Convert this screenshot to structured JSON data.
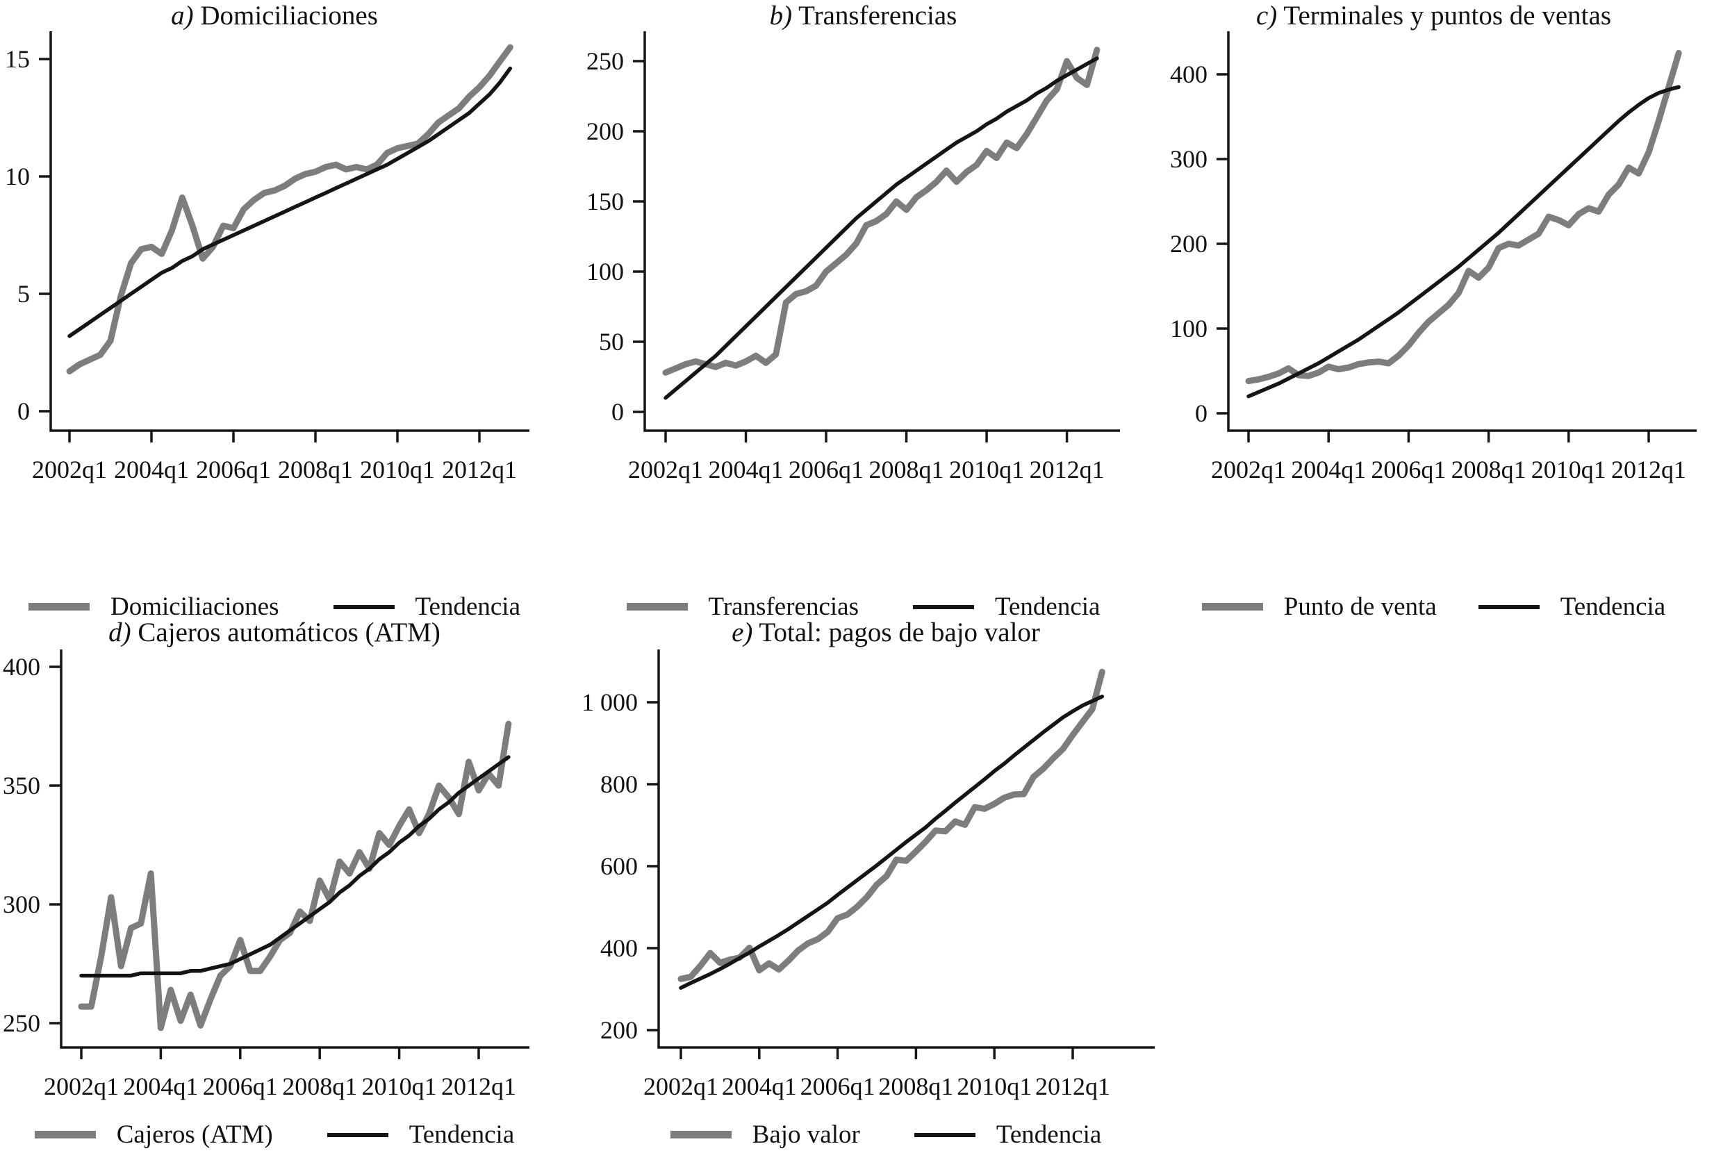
{
  "figure": {
    "background": "#ffffff",
    "series_color_gray": "#7d7d7d",
    "series_color_black": "#151515"
  },
  "chart_data": [
    {
      "id": "a",
      "type": "line",
      "title": "a) Domiciliaciones",
      "xlabel": "",
      "ylabel": "",
      "x_start": "2002q1",
      "x_end": "2012q4",
      "frequency": "quarterly",
      "grid": false,
      "legend_position": "bottom",
      "ylim": [
        0,
        16.5
      ],
      "y_tick_values": [
        0,
        5,
        10,
        15
      ],
      "y_tick_labels": [
        "0",
        "5",
        "10",
        "15"
      ],
      "x_tick_labels": [
        "2002q1",
        "2004q1",
        "2006q1",
        "2008q1",
        "2010q1",
        "2012q1"
      ],
      "series": [
        {
          "name": "Domiciliaciones",
          "color": "#7d7d7d",
          "values": [
            1.7,
            2.0,
            2.2,
            2.4,
            3.0,
            4.9,
            6.3,
            6.9,
            7.0,
            6.7,
            7.7,
            9.1,
            7.9,
            6.5,
            7.0,
            7.9,
            7.8,
            8.6,
            9.0,
            9.3,
            9.4,
            9.6,
            9.9,
            10.1,
            10.2,
            10.4,
            10.5,
            10.3,
            10.4,
            10.3,
            10.5,
            11.0,
            11.2,
            11.3,
            11.4,
            11.8,
            12.3,
            12.6,
            12.9,
            13.4,
            13.8,
            14.3,
            14.9,
            15.5
          ]
        },
        {
          "name": "Tendencia",
          "color": "#151515",
          "values": [
            3.2,
            3.5,
            3.8,
            4.1,
            4.4,
            4.7,
            5.0,
            5.3,
            5.6,
            5.9,
            6.1,
            6.4,
            6.6,
            6.9,
            7.1,
            7.3,
            7.5,
            7.7,
            7.9,
            8.1,
            8.3,
            8.5,
            8.7,
            8.9,
            9.1,
            9.3,
            9.5,
            9.7,
            9.9,
            10.1,
            10.3,
            10.5,
            10.75,
            11.0,
            11.25,
            11.5,
            11.8,
            12.1,
            12.4,
            12.7,
            13.1,
            13.5,
            14.0,
            14.6
          ]
        }
      ],
      "legend": [
        {
          "label": "Domiciliaciones",
          "style": "thick-gray"
        },
        {
          "label": "Tendencia",
          "style": "thin-black"
        }
      ]
    },
    {
      "id": "b",
      "type": "line",
      "title": "b) Transferencias",
      "xlabel": "",
      "ylabel": "",
      "x_start": "2002q1",
      "x_end": "2012q4",
      "frequency": "quarterly",
      "grid": false,
      "legend_position": "bottom",
      "ylim": [
        0,
        271
      ],
      "y_tick_values": [
        0,
        50,
        100,
        150,
        200,
        250
      ],
      "y_tick_labels": [
        "0",
        "50",
        "100",
        "150",
        "200",
        "250"
      ],
      "x_tick_labels": [
        "2002q1",
        "2004q1",
        "2006q1",
        "2008q1",
        "2010q1",
        "2012q1"
      ],
      "series": [
        {
          "name": "Transferencias",
          "color": "#7d7d7d",
          "values": [
            28,
            31,
            34,
            36,
            34,
            32,
            35,
            33,
            36,
            40,
            35,
            41,
            78,
            84,
            86,
            90,
            100,
            106,
            112,
            120,
            133,
            136,
            141,
            150,
            144,
            153,
            158,
            164,
            172,
            164,
            171,
            176,
            186,
            181,
            192,
            188,
            198,
            210,
            222,
            230,
            250,
            238,
            233,
            258
          ]
        },
        {
          "name": "Tendencia",
          "color": "#151515",
          "values": [
            10,
            16,
            22,
            28,
            34,
            40,
            47,
            54,
            61,
            68,
            75,
            82,
            89,
            96,
            103,
            110,
            117,
            124,
            131,
            138,
            144,
            150,
            156,
            162,
            167,
            172,
            177,
            182,
            187,
            192,
            196,
            200,
            205,
            209,
            214,
            218,
            222,
            227,
            231,
            236,
            240,
            244,
            248,
            252
          ]
        }
      ],
      "legend": [
        {
          "label": "Transferencias",
          "style": "thick-gray"
        },
        {
          "label": "Tendencia",
          "style": "thin-black"
        }
      ]
    },
    {
      "id": "c",
      "type": "line",
      "title": "c) Terminales y puntos de ventas",
      "xlabel": "",
      "ylabel": "",
      "x_start": "2002q1",
      "x_end": "2012q4",
      "frequency": "quarterly",
      "grid": false,
      "legend_position": "bottom",
      "ylim": [
        0,
        437
      ],
      "y_tick_values": [
        0,
        100,
        200,
        300,
        400
      ],
      "y_tick_labels": [
        "0",
        "100",
        "200",
        "300",
        "400"
      ],
      "x_tick_labels": [
        "2002q1",
        "2004q1",
        "2006q1",
        "2008q1",
        "2010q1",
        "2012q1"
      ],
      "series": [
        {
          "name": "Punto de venta",
          "color": "#7d7d7d",
          "values": [
            38,
            40,
            43,
            47,
            53,
            45,
            44,
            48,
            55,
            52,
            54,
            58,
            60,
            61,
            59,
            68,
            80,
            95,
            108,
            118,
            128,
            142,
            168,
            160,
            172,
            195,
            200,
            198,
            205,
            212,
            232,
            228,
            222,
            235,
            242,
            238,
            258,
            270,
            290,
            283,
            308,
            345,
            385,
            425
          ]
        },
        {
          "name": "Tendencia",
          "color": "#151515",
          "values": [
            20,
            25,
            30,
            35,
            41,
            47,
            53,
            59,
            66,
            73,
            80,
            87,
            95,
            103,
            111,
            119,
            128,
            137,
            146,
            155,
            164,
            173,
            183,
            193,
            203,
            213,
            224,
            235,
            246,
            257,
            268,
            279,
            290,
            301,
            312,
            323,
            334,
            345,
            355,
            364,
            372,
            378,
            382,
            385
          ]
        }
      ],
      "legend": [
        {
          "label": "Punto de venta",
          "style": "thick-gray"
        },
        {
          "label": "Tendencia",
          "style": "thin-black"
        }
      ]
    },
    {
      "id": "d",
      "type": "line",
      "title": "d) Cajeros automáticos (ATM)",
      "xlabel": "",
      "ylabel": "",
      "x_start": "2002q1",
      "x_end": "2012q4",
      "frequency": "quarterly",
      "grid": false,
      "legend_position": "bottom",
      "ylim": [
        245,
        405
      ],
      "y_tick_values": [
        250,
        300,
        350,
        400
      ],
      "y_tick_labels": [
        "250",
        "300",
        "350",
        "400"
      ],
      "x_tick_labels": [
        "2002q1",
        "2004q1",
        "2006q1",
        "2008q1",
        "2010q1",
        "2012q1"
      ],
      "series": [
        {
          "name": "Cajeros (ATM)",
          "color": "#7d7d7d",
          "values": [
            257,
            257,
            278,
            303,
            274,
            290,
            292,
            313,
            248,
            264,
            251,
            262,
            249,
            260,
            270,
            274,
            285,
            272,
            272,
            278,
            285,
            288,
            297,
            293,
            310,
            302,
            318,
            313,
            322,
            315,
            330,
            325,
            333,
            340,
            330,
            338,
            350,
            345,
            338,
            360,
            348,
            355,
            350,
            376
          ]
        },
        {
          "name": "Tendencia",
          "color": "#151515",
          "values": [
            270,
            270,
            270,
            270,
            270,
            270,
            271,
            271,
            271,
            271,
            271,
            272,
            272,
            273,
            274,
            275,
            277,
            279,
            281,
            283,
            286,
            289,
            292,
            295,
            298,
            301,
            305,
            308,
            312,
            315,
            319,
            322,
            326,
            329,
            333,
            336,
            340,
            343,
            347,
            350,
            353,
            356,
            359,
            362
          ]
        }
      ],
      "legend": [
        {
          "label": "Cajeros (ATM)",
          "style": "thick-gray"
        },
        {
          "label": "Tendencia",
          "style": "thin-black"
        }
      ]
    },
    {
      "id": "e",
      "type": "line",
      "title": "e) Total: pagos de bajo valor",
      "xlabel": "",
      "ylabel": "",
      "x_start": "2002q1",
      "x_end": "2012q4",
      "frequency": "quarterly",
      "grid": false,
      "legend_position": "bottom",
      "ylim": [
        190,
        1090
      ],
      "y_tick_values": [
        200,
        400,
        600,
        800,
        1000
      ],
      "y_tick_labels": [
        "200",
        "400",
        "600",
        "800",
        "1 000"
      ],
      "x_tick_labels": [
        "2002q1",
        "2004q1",
        "2006q1",
        "2008q1",
        "2010q1",
        "2012q1"
      ],
      "series": [
        {
          "name": "Bajo valor",
          "color": "#7d7d7d",
          "values": [
            325,
            330,
            357,
            388,
            364,
            372,
            377,
            401,
            346,
            363,
            348,
            370,
            395,
            412,
            422,
            440,
            473,
            482,
            501,
            525,
            555,
            576,
            616,
            613,
            636,
            660,
            687,
            685,
            709,
            701,
            744,
            740,
            752,
            767,
            775,
            776,
            818,
            838,
            863,
            886,
            920,
            952,
            983,
            1074
          ]
        },
        {
          "name": "Tendencia",
          "color": "#151515",
          "values": [
            303,
            315,
            326,
            337,
            349,
            362,
            376,
            389,
            404,
            418,
            432,
            447,
            463,
            479,
            495,
            511,
            530,
            548,
            566,
            584,
            602,
            621,
            640,
            659,
            677,
            695,
            716,
            735,
            755,
            774,
            793,
            812,
            832,
            850,
            870,
            889,
            908,
            927,
            945,
            963,
            978,
            992,
            1003,
            1014
          ]
        }
      ],
      "legend": [
        {
          "label": "Bajo valor",
          "style": "thick-gray"
        },
        {
          "label": "Tendencia",
          "style": "thin-black"
        }
      ]
    }
  ]
}
